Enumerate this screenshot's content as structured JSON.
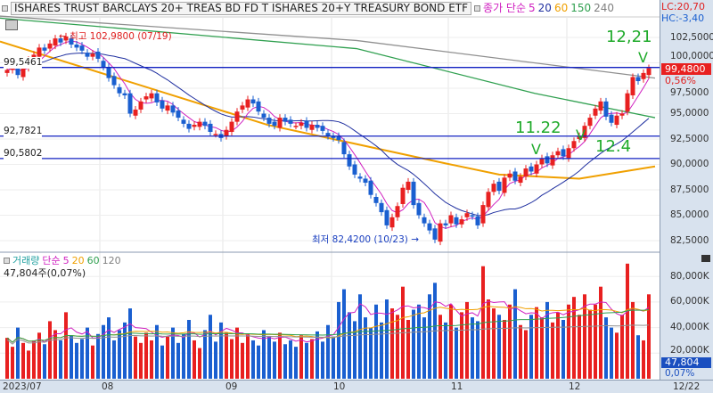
{
  "header": {
    "title": "ISHARES TRUST BARCLAYS 20+ TREAS BD FD T  ISHARES 20+Y TREASURY BOND ETF",
    "ma_label": "종가 단순",
    "ma_periods": [
      "5",
      "20",
      "60",
      "150",
      "240"
    ]
  },
  "volume_header": {
    "label": "거래량",
    "ma_label": "단순",
    "ma_periods": [
      "5",
      "20",
      "60",
      "120"
    ],
    "value": "47,804주(0,07%)"
  },
  "right_axis": {
    "lc": "LC:20,70",
    "hc": "HC:-3,40",
    "price_ticks": [
      "102,5000",
      "100,0000",
      "97,5000",
      "95,0000",
      "92,5000",
      "90,0000",
      "87,5000",
      "85,0000",
      "82,5000"
    ],
    "current_price": "99,4800",
    "change_pct": "0,56%",
    "volume_ticks": [
      "80,000K",
      "60,000K",
      "40,000K",
      "20,000K"
    ],
    "current_volume": "47,804",
    "volume_pct": "0,07%"
  },
  "x_axis": {
    "labels": [
      "2023/07",
      "08",
      "09",
      "10",
      "11",
      "12"
    ],
    "last_date": "12/22"
  },
  "horizontal_lines": [
    {
      "label": "99,5461",
      "value": 99.5461
    },
    {
      "label": "92,7821",
      "value": 92.7821
    },
    {
      "label": "90,5802",
      "value": 90.5802
    }
  ],
  "annotations": {
    "high": "최고 102,9800 (07/19)",
    "low": "최저 82,4200 (10/23)"
  },
  "handwritten_notes": [
    "12,21",
    "11.22",
    "12.4"
  ],
  "colors": {
    "up": "#e82020",
    "down": "#1a5fd0",
    "ma5": "#d020c0",
    "ma20": "#2030a0",
    "ma60": "#f0a000",
    "ma150": "#30a050",
    "ma240": "#909090",
    "hline": "#1020c0"
  },
  "chart_data": {
    "type": "candlestick",
    "price_range": [
      81,
      104.8
    ],
    "close": [
      99.3,
      99.6,
      98.8,
      99.5,
      100.3,
      100.8,
      101.5,
      101.2,
      101.9,
      102.4,
      102.0,
      102.6,
      101.8,
      101.5,
      101.2,
      100.6,
      100.9,
      100.4,
      99.6,
      98.5,
      97.8,
      97.0,
      96.8,
      95.0,
      95.4,
      96.2,
      96.7,
      97.0,
      96.1,
      95.5,
      95.8,
      95.1,
      94.6,
      94.0,
      93.5,
      93.9,
      94.2,
      93.8,
      93.2,
      93.0,
      92.6,
      93.4,
      94.2,
      95.2,
      95.8,
      96.4,
      96.0,
      95.2,
      94.6,
      94.0,
      93.8,
      94.6,
      94.2,
      94.0,
      93.8,
      94.1,
      93.6,
      93.9,
      93.6,
      93.3,
      92.8,
      92.6,
      92.4,
      91.0,
      89.8,
      89.0,
      88.6,
      88.2,
      87.0,
      86.2,
      85.3,
      84.0,
      84.8,
      85.9,
      87.7,
      88.3,
      86.0,
      85.0,
      84.2,
      83.5,
      82.6,
      84.2,
      84.0,
      85.0,
      84.1,
      84.6,
      85.2,
      84.9,
      84.0,
      86.0,
      87.3,
      88.1,
      87.4,
      88.7,
      89.1,
      88.4,
      88.8,
      89.6,
      89.3,
      90.0,
      90.6,
      90.1,
      90.9,
      91.3,
      90.8,
      91.6,
      92.3,
      92.8,
      93.8,
      94.6,
      95.5,
      96.2,
      94.7,
      94.1,
      94.8,
      95.0,
      97.0,
      98.6,
      98.2,
      99.0,
      99.48
    ],
    "volume_k": [
      32,
      25,
      40,
      28,
      22,
      30,
      36,
      27,
      45,
      38,
      30,
      52,
      34,
      28,
      31,
      40,
      26,
      35,
      42,
      48,
      30,
      38,
      44,
      55,
      33,
      28,
      36,
      30,
      42,
      26,
      33,
      40,
      28,
      35,
      46,
      30,
      24,
      38,
      50,
      29,
      44,
      36,
      31,
      40,
      28,
      35,
      30,
      26,
      38,
      33,
      29,
      36,
      27,
      30,
      25,
      34,
      28,
      31,
      37,
      29,
      42,
      33,
      60,
      70,
      52,
      45,
      66,
      48,
      40,
      58,
      44,
      62,
      55,
      50,
      72,
      46,
      54,
      58,
      48,
      66,
      75,
      50,
      44,
      58,
      40,
      52,
      60,
      48,
      45,
      88,
      62,
      55,
      50,
      46,
      58,
      70,
      42,
      38,
      50,
      56,
      48,
      60,
      44,
      52,
      46,
      58,
      64,
      50,
      66,
      54,
      58,
      72,
      48,
      40,
      36,
      50,
      90,
      60,
      34,
      30,
      66
    ]
  }
}
